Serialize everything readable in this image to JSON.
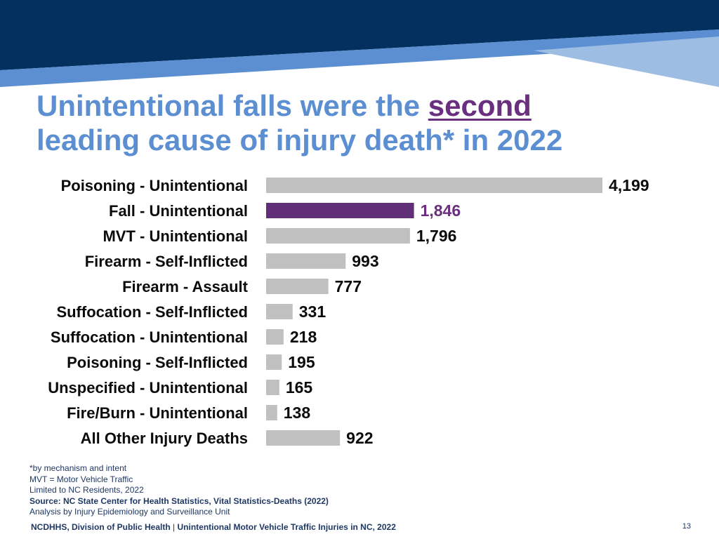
{
  "title": {
    "part1": "Unintentional falls were the ",
    "emphasis": "second",
    "part2": "leading cause of injury death* in 2022"
  },
  "colors": {
    "bar_default": "#c0c0c0",
    "bar_highlight": "#612f78",
    "label_default": "#0b0b0b",
    "label_highlight": "#6a2f7e",
    "title": "#5b8fd1",
    "banner_dark": "#03305f",
    "banner_mid": "#5b8fd1",
    "banner_light": "#9dbde3"
  },
  "chart_data": {
    "type": "bar",
    "orientation": "horizontal",
    "categories": [
      "Poisoning - Unintentional",
      "Fall - Unintentional",
      "MVT - Unintentional",
      "Firearm - Self-Inflicted",
      "Firearm - Assault",
      "Suffocation - Self-Inflicted",
      "Suffocation - Unintentional",
      "Poisoning - Self-Inflicted",
      "Unspecified - Unintentional",
      "Fire/Burn - Unintentional",
      "All Other Injury Deaths"
    ],
    "values": [
      4199,
      1846,
      1796,
      993,
      777,
      331,
      218,
      195,
      165,
      138,
      922
    ],
    "value_labels": [
      "4,199",
      "1,846",
      "1,796",
      "993",
      "777",
      "331",
      "218",
      "195",
      "165",
      "138",
      "922"
    ],
    "highlight_index": 1,
    "xlim": [
      0,
      4199
    ],
    "title": "",
    "xlabel": "",
    "ylabel": "",
    "grid": false,
    "legend": false
  },
  "notes": [
    "*by mechanism and intent",
    "MVT = Motor Vehicle Traffic",
    "Limited to NC Residents, 2022"
  ],
  "source": "Source: NC State Center for Health Statistics, Vital Statistics-Deaths (2022)",
  "analysis": "Analysis by Injury Epidemiology and Surveillance Unit",
  "footer": {
    "org": "NCDHHS, Division of Public Health",
    "separator": " | ",
    "topic": "Unintentional Motor Vehicle Traffic Injuries in NC, 2022"
  },
  "page_number": "13"
}
